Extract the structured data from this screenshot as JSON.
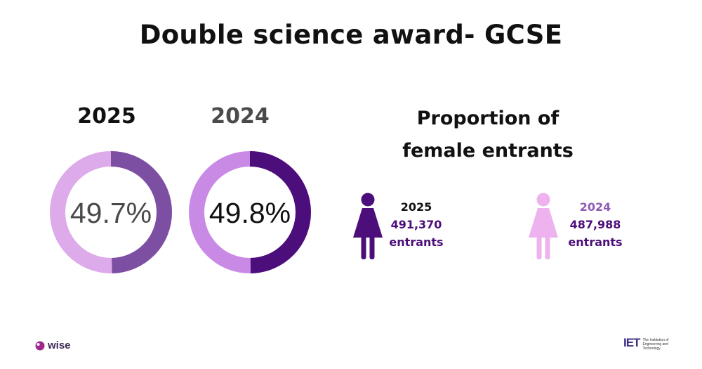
{
  "title": "Double science award- GCSE",
  "proportion_title_line1": "Proportion of",
  "proportion_title_line2": "female entrants",
  "colors": {
    "donut_2025_light": "#ddaaea",
    "donut_2025_dark": "#7c4fa3",
    "donut_2024_light": "#c98ae6",
    "donut_2024_dark": "#4c0e7a",
    "icon_2025": "#4c0e7a",
    "icon_2024": "#eeb3ee",
    "number_dark": "#4c0e7a",
    "number_light": "#8e5ab6"
  },
  "chart_data": [
    {
      "type": "pie",
      "label": "2025",
      "value_text": "49.7%",
      "values": [
        49.7,
        50.3
      ]
    },
    {
      "type": "pie",
      "label": "2024",
      "value_text": "49.8%",
      "values": [
        49.8,
        50.2
      ]
    }
  ],
  "entrants": [
    {
      "year": "2025",
      "count": "491,370",
      "unit": "entrants",
      "icon": "female-person-icon"
    },
    {
      "year": "2024",
      "count": "487,988",
      "unit": "entrants",
      "icon": "female-person-icon"
    }
  ],
  "logos": {
    "wise": "wise",
    "iet": "IET",
    "iet_subtitle": "The Institution of Engineering and Technology"
  }
}
